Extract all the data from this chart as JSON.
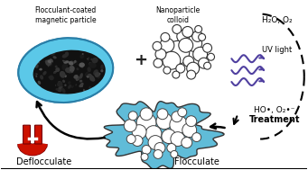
{
  "bg_color": "#ffffff",
  "blue_coat": "#5bc8e8",
  "dark_core": "#1a1a1a",
  "purple": "#5040a0",
  "red_magnet": "#cc1100",
  "floc_blue": "#60bcd8",
  "label_flocculant": "Flocculant-coated\nmagnetic particle",
  "label_nanoparticle": "Nanoparticle\ncolloid",
  "label_h2o": "H₂O, O₂",
  "label_uv": "UV light",
  "label_ho": "HO•, O₂•⁻",
  "label_treatment": "Treatment",
  "label_deflocculate": "Deflocculate",
  "label_flocculate": "Flocculate",
  "label_plus": "+",
  "figsize": [
    3.41,
    1.89
  ],
  "dpi": 100,
  "colloid_circles": [
    [
      197,
      58,
      13
    ],
    [
      215,
      48,
      9
    ],
    [
      203,
      40,
      7
    ],
    [
      185,
      50,
      8
    ],
    [
      222,
      60,
      8
    ],
    [
      209,
      68,
      6
    ],
    [
      190,
      67,
      10
    ],
    [
      219,
      40,
      6
    ],
    [
      178,
      60,
      6
    ],
    [
      230,
      53,
      5
    ],
    [
      200,
      76,
      5
    ],
    [
      214,
      76,
      7
    ],
    [
      226,
      70,
      6
    ],
    [
      183,
      41,
      5
    ],
    [
      195,
      83,
      4
    ],
    [
      212,
      83,
      5
    ],
    [
      224,
      41,
      4
    ],
    [
      175,
      70,
      5
    ],
    [
      234,
      63,
      4
    ],
    [
      185,
      78,
      4
    ],
    [
      206,
      50,
      8
    ],
    [
      174,
      51,
      5
    ],
    [
      230,
      73,
      4
    ],
    [
      196,
      32,
      5
    ],
    [
      208,
      35,
      6
    ],
    [
      220,
      32,
      4
    ]
  ],
  "floc_circles": [
    [
      162,
      137,
      11
    ],
    [
      182,
      135,
      9
    ],
    [
      198,
      139,
      10
    ],
    [
      170,
      149,
      9
    ],
    [
      187,
      152,
      8
    ],
    [
      154,
      147,
      8
    ],
    [
      172,
      159,
      8
    ],
    [
      197,
      155,
      8
    ],
    [
      144,
      140,
      7
    ],
    [
      162,
      127,
      7
    ],
    [
      180,
      127,
      6
    ],
    [
      196,
      130,
      6
    ],
    [
      210,
      145,
      8
    ],
    [
      207,
      159,
      6
    ],
    [
      152,
      157,
      6
    ],
    [
      177,
      165,
      6
    ],
    [
      190,
      165,
      5
    ],
    [
      147,
      129,
      5
    ],
    [
      212,
      135,
      6
    ],
    [
      162,
      167,
      5
    ],
    [
      202,
      125,
      5
    ],
    [
      145,
      155,
      5
    ],
    [
      218,
      153,
      5
    ],
    [
      175,
      172,
      5
    ],
    [
      193,
      172,
      4
    ],
    [
      160,
      175,
      4
    ]
  ]
}
